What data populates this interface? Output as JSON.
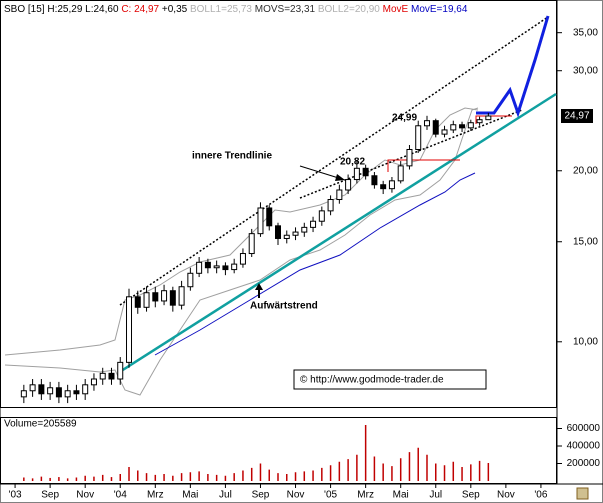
{
  "chart_data": [
    {
      "type": "candlestick",
      "header": [
        {
          "text": "SBO [15] H:25,29 L:24,60 ",
          "color": "#000000"
        },
        {
          "text": "C: 24,97",
          "color": "#e00000"
        },
        {
          "text": " +0,35 ",
          "color": "#000000"
        },
        {
          "text": "BOLL1=25,73 ",
          "color": "#b0b0b0"
        },
        {
          "text": "MOVS=23,31 ",
          "color": "#303030"
        },
        {
          "text": "BOLL2=20,90 ",
          "color": "#b0b0b0"
        },
        {
          "text": "MovE ",
          "color": "#e00000"
        },
        {
          "text": "MovE=19,64",
          "color": "#0000c0"
        }
      ],
      "annotations": [
        "24,99",
        "20,82",
        "innere Trendlinie",
        "Aufwärtstrend",
        "© http://www.godmode-trader.de"
      ],
      "last_value_label": "24,97",
      "log_scale": true,
      "x": [
        0.5,
        1,
        1.5,
        2,
        2.5,
        3,
        3.5,
        4,
        4.5,
        5,
        5.5,
        6,
        6.5,
        7,
        7.5,
        8,
        8.5,
        9,
        9.5,
        10,
        10.5,
        11,
        11.5,
        12,
        12.5,
        13,
        13.5,
        14,
        14.5,
        15,
        15.5,
        16,
        16.5,
        17,
        17.5,
        18,
        18.5,
        19,
        19.5,
        20,
        20.5,
        21,
        21.5,
        22,
        22.5,
        23,
        23.5,
        24,
        24.5,
        25,
        25.5,
        26,
        26.5,
        27
      ],
      "open": [
        8.0,
        8.2,
        8.4,
        8.1,
        8.3,
        8.0,
        8.2,
        8.1,
        8.4,
        8.6,
        8.8,
        8.6,
        9.2,
        12.0,
        11.5,
        12.2,
        11.8,
        12.3,
        11.6,
        12.5,
        13.2,
        13.8,
        13.5,
        13.6,
        13.4,
        13.7,
        14.3,
        15.5,
        17.2,
        16.0,
        15.2,
        15.4,
        15.6,
        15.9,
        16.3,
        17.0,
        17.8,
        18.5,
        19.3,
        20.2,
        19.6,
        18.9,
        18.6,
        19.2,
        20.4,
        21.8,
        24.0,
        24.5,
        23.2,
        23.6,
        24.1,
        23.8,
        24.3,
        24.6
      ],
      "high": [
        8.4,
        8.6,
        8.6,
        8.5,
        8.5,
        8.4,
        8.4,
        8.6,
        8.8,
        9.0,
        9.0,
        9.4,
        12.4,
        12.3,
        12.5,
        12.5,
        12.6,
        12.5,
        12.8,
        13.5,
        14.1,
        14.0,
        13.9,
        13.8,
        14.0,
        14.6,
        15.8,
        17.6,
        17.4,
        16.2,
        15.7,
        15.9,
        16.2,
        16.6,
        17.3,
        18.1,
        18.9,
        19.7,
        20.82,
        20.5,
        19.9,
        19.2,
        19.5,
        20.8,
        22.2,
        24.5,
        24.99,
        24.7,
        24.0,
        24.5,
        24.4,
        24.6,
        24.9,
        25.29
      ],
      "low": [
        7.8,
        8.0,
        7.9,
        7.9,
        7.8,
        7.8,
        7.9,
        7.9,
        8.2,
        8.4,
        8.4,
        8.4,
        9.0,
        11.2,
        11.3,
        11.5,
        11.6,
        11.3,
        11.4,
        12.3,
        13.0,
        13.2,
        13.2,
        13.1,
        13.2,
        13.5,
        14.1,
        15.3,
        15.7,
        14.8,
        14.9,
        15.1,
        15.3,
        15.6,
        16.0,
        16.7,
        17.5,
        18.2,
        19.0,
        19.3,
        18.6,
        18.2,
        18.3,
        19.0,
        20.1,
        21.5,
        23.6,
        22.9,
        22.9,
        23.3,
        23.4,
        23.5,
        24.0,
        24.6
      ],
      "close": [
        8.2,
        8.4,
        8.1,
        8.3,
        8.0,
        8.2,
        8.1,
        8.4,
        8.6,
        8.8,
        8.6,
        9.2,
        12.0,
        11.5,
        12.2,
        11.8,
        12.3,
        11.6,
        12.5,
        13.2,
        13.8,
        13.5,
        13.6,
        13.4,
        13.7,
        14.3,
        15.5,
        17.2,
        16.0,
        15.2,
        15.4,
        15.6,
        15.9,
        16.3,
        17.0,
        17.8,
        18.5,
        19.3,
        20.2,
        19.6,
        18.9,
        18.6,
        19.2,
        20.4,
        21.8,
        24.0,
        24.5,
        23.2,
        23.6,
        24.1,
        23.8,
        24.3,
        24.6,
        24.97
      ],
      "xlim": [
        -0.86,
        30.86
      ],
      "ylim": [
        7.74,
        37.6
      ],
      "yticks": [
        {
          "value": 10,
          "label": "10,00"
        },
        {
          "value": 15,
          "label": "15,00"
        },
        {
          "value": 20,
          "label": "20,00"
        },
        {
          "value": 30,
          "label": "30,00"
        },
        {
          "value": 35,
          "label": "35,00"
        }
      ],
      "up_color": "#ffffff",
      "down_color": "#000000"
    },
    {
      "type": "bar",
      "title": "Volume=205589",
      "values": [
        40000,
        30000,
        50000,
        35000,
        45000,
        30000,
        40000,
        60000,
        50000,
        70000,
        45000,
        80000,
        160000,
        120000,
        90000,
        70000,
        80000,
        60000,
        90000,
        100000,
        110000,
        80000,
        70000,
        60000,
        90000,
        120000,
        150000,
        200000,
        130000,
        90000,
        80000,
        100000,
        110000,
        120000,
        150000,
        180000,
        220000,
        250000,
        300000,
        640000,
        280000,
        200000,
        170000,
        260000,
        330000,
        380000,
        300000,
        200000,
        180000,
        220000,
        160000,
        190000,
        230000,
        205589
      ],
      "color": "#c00000",
      "ylim": [
        0,
        697000
      ],
      "yticks": [
        200000,
        400000,
        600000
      ],
      "xticks": [
        {
          "value": 0,
          "label": "'03"
        },
        {
          "value": 2,
          "label": "Sep"
        },
        {
          "value": 4,
          "label": "Nov"
        },
        {
          "value": 6,
          "label": "'04"
        },
        {
          "value": 8,
          "label": "Mrz"
        },
        {
          "value": 10,
          "label": "Mai"
        },
        {
          "value": 12,
          "label": "Jul"
        },
        {
          "value": 14,
          "label": "Sep"
        },
        {
          "value": 16,
          "label": "Nov"
        },
        {
          "value": 18,
          "label": "'05"
        },
        {
          "value": 20,
          "label": "Mrz"
        },
        {
          "value": 22,
          "label": "Mai"
        },
        {
          "value": 24,
          "label": "Jul"
        },
        {
          "value": 26,
          "label": "Sep"
        },
        {
          "value": 28,
          "label": "Nov"
        },
        {
          "value": 30,
          "label": "'06"
        }
      ]
    }
  ]
}
